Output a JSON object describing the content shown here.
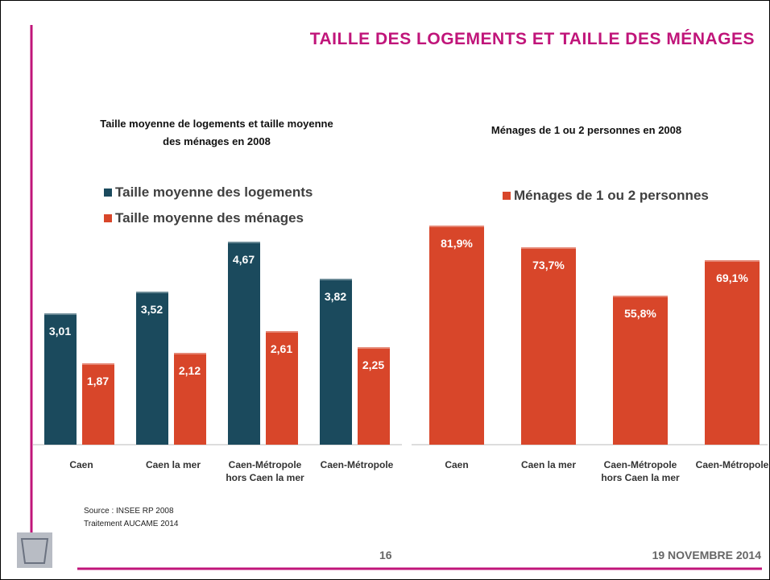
{
  "title": "TAILLE DES LOGEMENTS ET TAILLE DES MÉNAGES",
  "chart_data": [
    {
      "type": "bar",
      "title": "Taille moyenne de logements et taille moyenne des ménages en 2008",
      "categories": [
        "Caen",
        "Caen la mer",
        "Caen-Métropole hors Caen la mer",
        "Caen-Métropole"
      ],
      "series": [
        {
          "name": "Taille moyenne des logements",
          "color": "#1b4a5d",
          "values": [
            3.01,
            3.52,
            4.67,
            3.82
          ],
          "value_labels": [
            "3,01",
            "3,52",
            "4,67",
            "3,82"
          ]
        },
        {
          "name": "Taille moyenne des ménages",
          "color": "#d8462a",
          "values": [
            1.87,
            2.12,
            2.61,
            2.25
          ],
          "value_labels": [
            "1,87",
            "2,12",
            "2,61",
            "2,25"
          ]
        }
      ],
      "ylim": [
        0,
        5
      ]
    },
    {
      "type": "bar",
      "title": "Ménages de 1 ou 2 personnes en 2008",
      "categories": [
        "Caen",
        "Caen la mer",
        "Caen-Métropole hors Caen la mer",
        "Caen-Métropole"
      ],
      "series": [
        {
          "name": "Ménages de 1 ou 2 personnes",
          "color": "#d8462a",
          "values": [
            81.9,
            73.7,
            55.8,
            69.1
          ],
          "value_labels": [
            "81,9%",
            "73,7%",
            "55,8%",
            "69,1%"
          ]
        }
      ],
      "ylim": [
        0,
        100
      ]
    }
  ],
  "source": [
    "Source : INSEE  RP 2008",
    "Traitement AUCAME 2014"
  ],
  "page_number": "16",
  "date": "19 NOVEMBRE 2014"
}
